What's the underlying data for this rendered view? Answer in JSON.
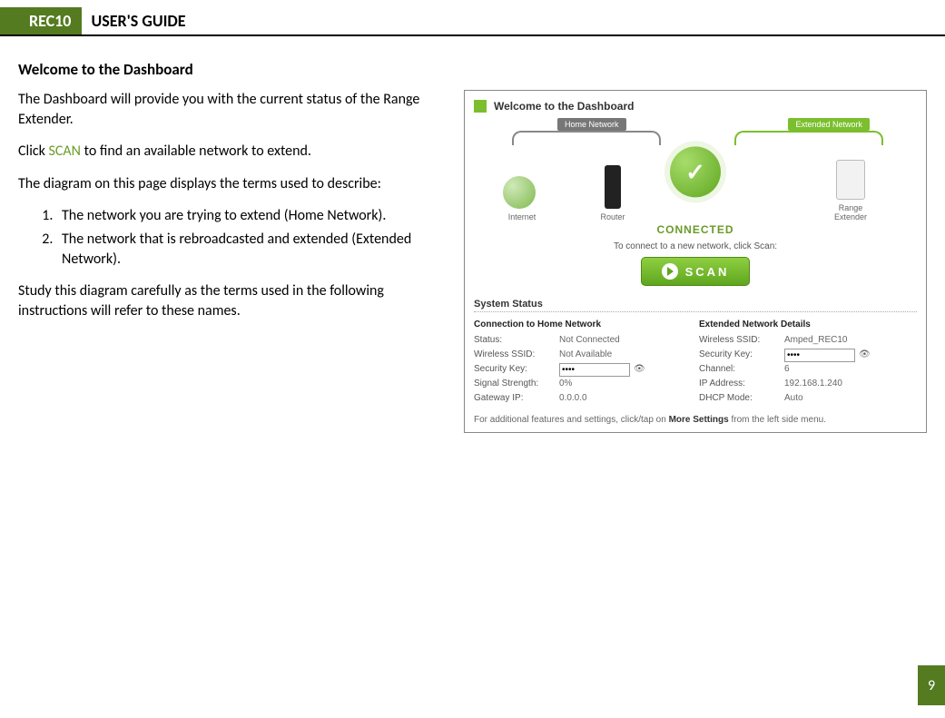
{
  "header": {
    "badge": "REC10",
    "title": "USER'S GUIDE"
  },
  "page_number": "9",
  "section_heading": "Welcome to the Dashboard",
  "body": {
    "p1": "The Dashboard will provide you with the current status of the Range Extender.",
    "p2_pre": "Click ",
    "p2_link": "SCAN",
    "p2_post": " to find an available network to extend.",
    "p3": "The diagram on this page displays the terms used to describe:",
    "list": [
      "The network you are trying to extend (Home Network).",
      "The network that is rebroadcasted and extended (Extended Network)."
    ],
    "p4": "Study this diagram carefully as the terms used in the following instructions will refer to these names."
  },
  "screenshot": {
    "title": "Welcome to the Dashboard",
    "home_tag": "Home Network",
    "ext_tag": "Extended Network",
    "labels": {
      "internet": "Internet",
      "router": "Router",
      "extender": "Range Extender"
    },
    "connected": "CONNECTED",
    "scan_caption": "To connect to a new network, click Scan:",
    "scan_label": "SCAN",
    "system_status": "System Status",
    "home_col_title": "Connection to Home Network",
    "ext_col_title": "Extended Network Details",
    "home_rows": {
      "status_k": "Status:",
      "status_v": "Not Connected",
      "ssid_k": "Wireless SSID:",
      "ssid_v": "Not Available",
      "key_k": "Security Key:",
      "key_v": "••••",
      "signal_k": "Signal Strength:",
      "signal_v": "0%",
      "gw_k": "Gateway IP:",
      "gw_v": "0.0.0.0"
    },
    "ext_rows": {
      "ssid_k": "Wireless SSID:",
      "ssid_v": "Amped_REC10",
      "key_k": "Security Key:",
      "key_v": "••••",
      "chan_k": "Channel:",
      "chan_v": "6",
      "ip_k": "IP Address:",
      "ip_v": "192.168.1.240",
      "dhcp_k": "DHCP Mode:",
      "dhcp_v": "Auto"
    },
    "footer_pre": "For additional features and settings, click/tap on ",
    "footer_bold": "More Settings",
    "footer_post": " from the left side menu."
  }
}
